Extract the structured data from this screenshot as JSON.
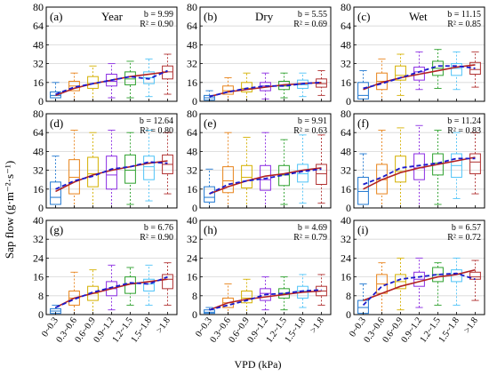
{
  "figure": {
    "ylabel": "Sap flow (g·m⁻²·s⁻¹)",
    "xlabel": "VPD (kPa)",
    "x_tick_labels": [
      "0~0.3",
      "0.3~0.6",
      "0.6~0.9",
      "0.9~1.2",
      "1.2~1.5",
      "1.5~1.8",
      ">1.8"
    ]
  },
  "box_colors": [
    "#1f77d0",
    "#e8831a",
    "#d4b000",
    "#8a2be2",
    "#2ca02c",
    "#4fc3f7",
    "#b03030"
  ],
  "fit_line_color": "#b22222",
  "mean_line_color": "#1a1acc",
  "chart_data": [
    {
      "panel": "(a)",
      "title": "Year",
      "b": "b = 9.99",
      "r2": "R² = 0.90",
      "type": "box",
      "ylim": [
        0,
        80
      ],
      "yticks": [
        0,
        16,
        32,
        48,
        64,
        80
      ],
      "boxes": [
        [
          0,
          3,
          5,
          8,
          16
        ],
        [
          0,
          9,
          13,
          17,
          24
        ],
        [
          0,
          11,
          15,
          21,
          30
        ],
        [
          3,
          13,
          17,
          23,
          32
        ],
        [
          3,
          14,
          19,
          25,
          34
        ],
        [
          4,
          15,
          20,
          25,
          36
        ],
        [
          6,
          19,
          25,
          30,
          40
        ]
      ],
      "means": [
        6,
        12,
        15,
        18,
        21,
        19,
        26
      ],
      "fit": [
        5,
        11,
        15,
        18,
        21,
        23,
        25
      ]
    },
    {
      "panel": "(b)",
      "title": "Dry",
      "b": "b = 5.55",
      "r2": "R² = 0.69",
      "type": "box",
      "ylim": [
        0,
        80
      ],
      "yticks": [
        0,
        16,
        32,
        48,
        64,
        80
      ],
      "boxes": [
        [
          0,
          1,
          3,
          5,
          9
        ],
        [
          0,
          6,
          9,
          13,
          20
        ],
        [
          0,
          8,
          11,
          16,
          24
        ],
        [
          2,
          9,
          13,
          16,
          24
        ],
        [
          3,
          10,
          13,
          17,
          24
        ],
        [
          4,
          11,
          14,
          18,
          24
        ],
        [
          5,
          12,
          15,
          19,
          26
        ]
      ],
      "means": [
        4,
        8,
        11,
        13,
        13,
        15,
        16
      ],
      "fit": [
        4,
        8,
        10,
        12,
        14,
        15,
        16
      ]
    },
    {
      "panel": "(c)",
      "title": "Wet",
      "b": "b = 11.15",
      "r2": "R² = 0.85",
      "type": "box",
      "ylim": [
        0,
        80
      ],
      "yticks": [
        0,
        16,
        32,
        48,
        64,
        80
      ],
      "boxes": [
        [
          0,
          2,
          5,
          16,
          26
        ],
        [
          0,
          10,
          17,
          24,
          36
        ],
        [
          5,
          18,
          22,
          30,
          40
        ],
        [
          10,
          18,
          25,
          29,
          42
        ],
        [
          11,
          22,
          28,
          34,
          44
        ],
        [
          10,
          22,
          28,
          32,
          42
        ],
        [
          12,
          23,
          27,
          33,
          42
        ]
      ],
      "means": [
        11,
        15,
        20,
        25,
        30,
        30,
        28
      ],
      "fit": [
        10,
        16,
        20,
        23,
        26,
        29,
        31
      ]
    },
    {
      "panel": "(d)",
      "title": "",
      "b": "b = 12.64",
      "r2": "R² = 0.80",
      "type": "box",
      "ylim": [
        0,
        80
      ],
      "yticks": [
        0,
        16,
        32,
        48,
        64,
        80
      ],
      "boxes": [
        [
          0,
          3,
          9,
          22,
          44
        ],
        [
          0,
          12,
          26,
          41,
          66
        ],
        [
          0,
          18,
          29,
          43,
          64
        ],
        [
          0,
          16,
          28,
          44,
          66
        ],
        [
          3,
          21,
          32,
          45,
          64
        ],
        [
          6,
          24,
          35,
          44,
          66
        ],
        [
          12,
          29,
          37,
          45,
          64
        ]
      ],
      "means": [
        16,
        23,
        27,
        33,
        35,
        39,
        38
      ],
      "fit": [
        14,
        22,
        28,
        32,
        35,
        38,
        40
      ]
    },
    {
      "panel": "(e)",
      "title": "",
      "b": "b = 9.91",
      "r2": "R² = 0.63",
      "type": "box",
      "ylim": [
        0,
        80
      ],
      "yticks": [
        0,
        16,
        32,
        48,
        64,
        80
      ],
      "boxes": [
        [
          0,
          5,
          9,
          18,
          33
        ],
        [
          0,
          13,
          23,
          35,
          64
        ],
        [
          0,
          17,
          26,
          36,
          60
        ],
        [
          0,
          15,
          24,
          36,
          64
        ],
        [
          3,
          19,
          28,
          36,
          58
        ],
        [
          4,
          22,
          29,
          37,
          62
        ],
        [
          4,
          20,
          29,
          37,
          62
        ]
      ],
      "means": [
        12,
        20,
        23,
        25,
        28,
        31,
        33
      ],
      "fit": [
        12,
        18,
        23,
        27,
        29,
        32,
        34
      ]
    },
    {
      "panel": "(f)",
      "title": "",
      "b": "b = 11.24",
      "r2": "R² = 0.83",
      "type": "box",
      "ylim": [
        0,
        80
      ],
      "yticks": [
        0,
        16,
        32,
        48,
        64,
        80
      ],
      "boxes": [
        [
          0,
          3,
          14,
          26,
          46
        ],
        [
          0,
          12,
          24,
          37,
          66
        ],
        [
          0,
          22,
          31,
          44,
          68
        ],
        [
          0,
          24,
          34,
          46,
          70
        ],
        [
          3,
          28,
          38,
          46,
          66
        ],
        [
          8,
          26,
          36,
          46,
          64
        ],
        [
          12,
          29,
          39,
          46,
          64
        ]
      ],
      "means": [
        20,
        26,
        34,
        36,
        38,
        42,
        42
      ],
      "fit": [
        16,
        24,
        30,
        34,
        37,
        40,
        43
      ]
    },
    {
      "panel": "(g)",
      "title": "",
      "b": "b = 6.76",
      "r2": "R² = 0.90",
      "type": "box",
      "ylim": [
        0,
        40
      ],
      "yticks": [
        0,
        8,
        16,
        24,
        32,
        40
      ],
      "boxes": [
        [
          0,
          0.5,
          1.5,
          2.5,
          4
        ],
        [
          0,
          4,
          7,
          10,
          18
        ],
        [
          0,
          6,
          9,
          12,
          19
        ],
        [
          2,
          8,
          11,
          14,
          21
        ],
        [
          4,
          9,
          13,
          16,
          20
        ],
        [
          4,
          10,
          13,
          15,
          21
        ],
        [
          4,
          11,
          15,
          17,
          22
        ]
      ],
      "means": [
        3,
        6.5,
        9.5,
        11.5,
        13.5,
        13,
        16
      ],
      "fit": [
        3,
        7,
        9,
        11,
        13,
        14,
        15
      ]
    },
    {
      "panel": "(h)",
      "title": "",
      "b": "b = 4.69",
      "r2": "R² = 0.79",
      "type": "box",
      "ylim": [
        0,
        40
      ],
      "yticks": [
        0,
        8,
        16,
        24,
        32,
        40
      ],
      "boxes": [
        [
          0,
          0.5,
          1,
          2,
          3
        ],
        [
          0,
          3,
          5,
          7,
          13
        ],
        [
          0,
          5,
          7,
          10,
          15
        ],
        [
          2,
          6,
          9,
          11,
          16
        ],
        [
          2,
          7,
          9,
          11,
          16
        ],
        [
          3,
          7,
          10,
          12,
          17
        ],
        [
          4,
          8,
          10,
          12,
          17
        ]
      ],
      "means": [
        2,
        4,
        6,
        8.5,
        9,
        10,
        10.5
      ],
      "fit": [
        2,
        5,
        6.5,
        7.5,
        8.5,
        9.5,
        10
      ]
    },
    {
      "panel": "(i)",
      "title": "",
      "b": "b = 6.57",
      "r2": "R² = 0.72",
      "type": "box",
      "ylim": [
        0,
        40
      ],
      "yticks": [
        0,
        8,
        16,
        24,
        32,
        40
      ],
      "boxes": [
        [
          0,
          0.5,
          3,
          6,
          13
        ],
        [
          0,
          9,
          13,
          17,
          22
        ],
        [
          2,
          11,
          14,
          17,
          24
        ],
        [
          3,
          12,
          15,
          18,
          24
        ],
        [
          4,
          14,
          17,
          20,
          22
        ],
        [
          4,
          14,
          17,
          19,
          24
        ],
        [
          6,
          15,
          16,
          18,
          23
        ]
      ],
      "means": [
        4,
        12,
        15,
        16,
        17,
        17.5,
        15
      ],
      "fit": [
        6,
        9,
        12,
        14,
        16,
        17,
        19
      ]
    }
  ]
}
